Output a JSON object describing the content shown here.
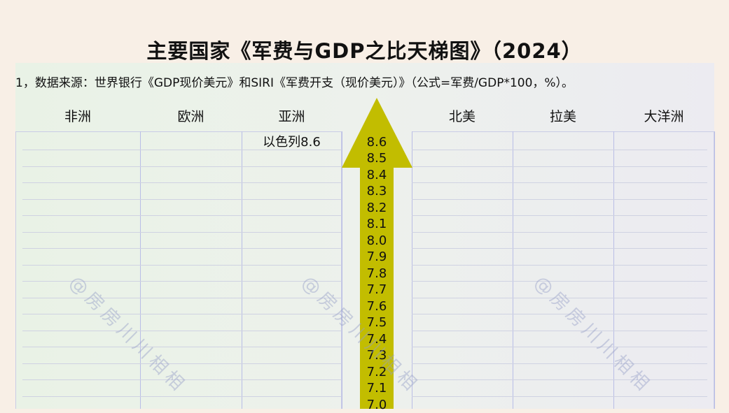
{
  "title": "主要国家《军费与GDP之比天梯图》（2024）",
  "note": "1，数据来源：世界银行《GDP现价美元》和SIRI《军费开支（现价美元）》（公式=军费/GDP*100，%）。",
  "watermark": "@房房川川相相",
  "colors": {
    "arrow": "#c2bd00",
    "background": "#f8efe6"
  },
  "chart_data": {
    "type": "table",
    "title": "主要国家《军费与GDP之比天梯图》（2024）",
    "columns": [
      "非洲",
      "欧洲",
      "亚洲",
      "北美",
      "拉美",
      "大洋洲"
    ],
    "scale_ticks": [
      "8.6",
      "8.5",
      "8.4",
      "8.3",
      "8.2",
      "8.1",
      "8.0",
      "7.9",
      "7.8",
      "7.7",
      "7.6",
      "7.5",
      "7.4",
      "7.3",
      "7.2",
      "7.1",
      "7.0"
    ],
    "entries": [
      {
        "region": "亚洲",
        "country": "以色列",
        "value": 8.6,
        "label": "以色列8.6"
      }
    ]
  }
}
